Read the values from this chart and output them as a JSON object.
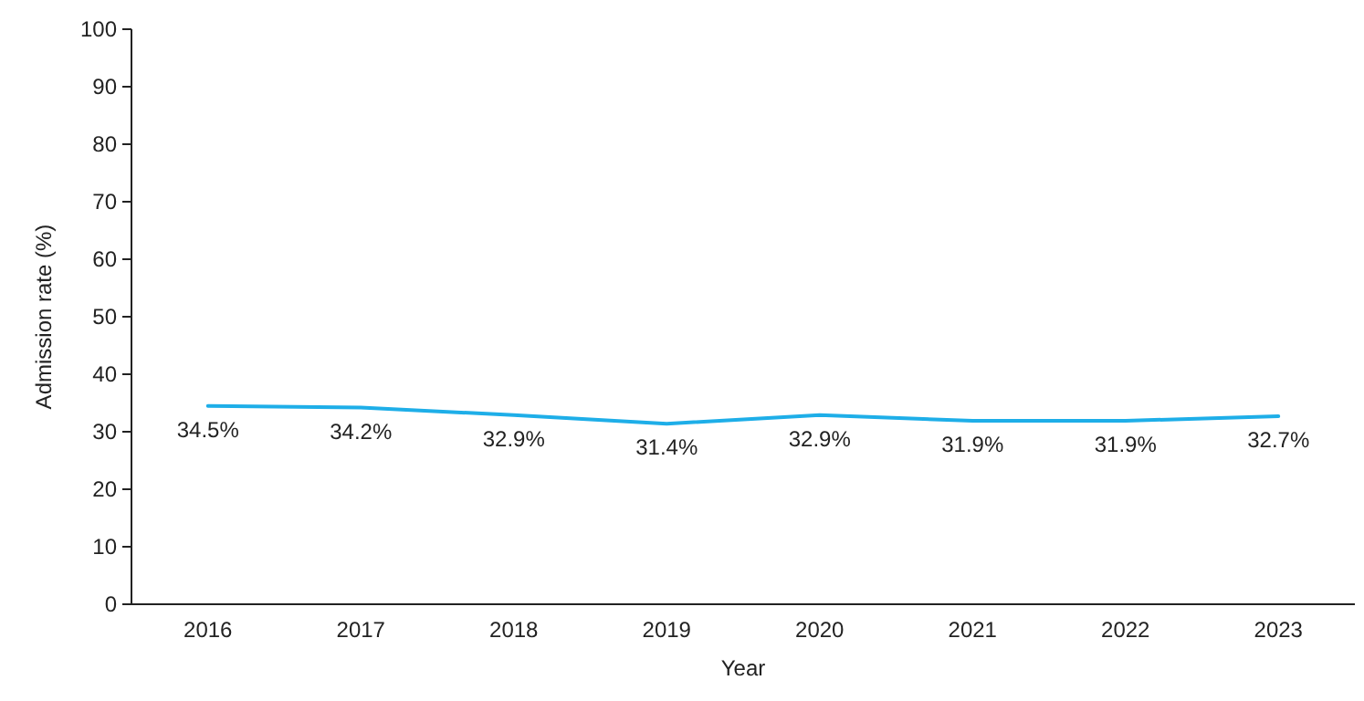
{
  "chart_data": {
    "type": "line",
    "xlabel": "Year",
    "ylabel": "Admission rate (%)",
    "categories": [
      "2016",
      "2017",
      "2018",
      "2019",
      "2020",
      "2021",
      "2022",
      "2023"
    ],
    "series": [
      {
        "color": "#1eaee8",
        "values": [
          34.5,
          34.2,
          32.9,
          31.4,
          32.9,
          31.9,
          31.9,
          32.7
        ],
        "value_labels": [
          "34.5%",
          "34.2%",
          "32.9%",
          "31.4%",
          "32.9%",
          "31.9%",
          "31.9%",
          "32.7%"
        ]
      }
    ],
    "ylim": [
      0,
      100
    ],
    "yticks": [
      0,
      10,
      20,
      30,
      40,
      50,
      60,
      70,
      80,
      90,
      100
    ],
    "marker": "none",
    "line_style": "solid",
    "grid": false
  }
}
